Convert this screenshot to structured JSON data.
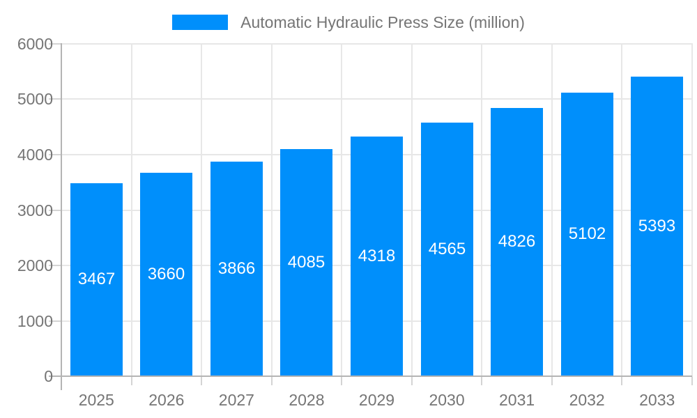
{
  "chart_data": {
    "type": "bar",
    "title": "Automatic Hydraulic Press Size (million)",
    "legend": {
      "position": "top",
      "label": "Automatic Hydraulic Press Size (million)"
    },
    "categories": [
      "2025",
      "2026",
      "2027",
      "2028",
      "2029",
      "2030",
      "2031",
      "2032",
      "2033"
    ],
    "series": [
      {
        "name": "Automatic Hydraulic Press Size (million)",
        "values": [
          3467,
          3660,
          3866,
          4085,
          4318,
          4565,
          4826,
          5102,
          5393
        ]
      }
    ],
    "value_labels": [
      "3467",
      "3660",
      "3866",
      "4085",
      "4318",
      "4565",
      "4826",
      "5102",
      "5393"
    ],
    "xlabel": "",
    "ylabel": "",
    "ylim": [
      0,
      6000
    ],
    "y_ticks": [
      0,
      1000,
      2000,
      3000,
      4000,
      5000,
      6000
    ],
    "y_tick_labels": [
      "0",
      "1000",
      "2000",
      "3000",
      "4000",
      "5000",
      "6000"
    ],
    "grid": true,
    "colors": {
      "bar": "#008FFB",
      "value_label": "#ffffff",
      "axis_label": "#757575",
      "legend_label": "#757575",
      "gridline": "#e7e7e7",
      "axis_line": "#b4b4b4",
      "tick": "#d4d4d4",
      "background": "#ffffff"
    }
  }
}
